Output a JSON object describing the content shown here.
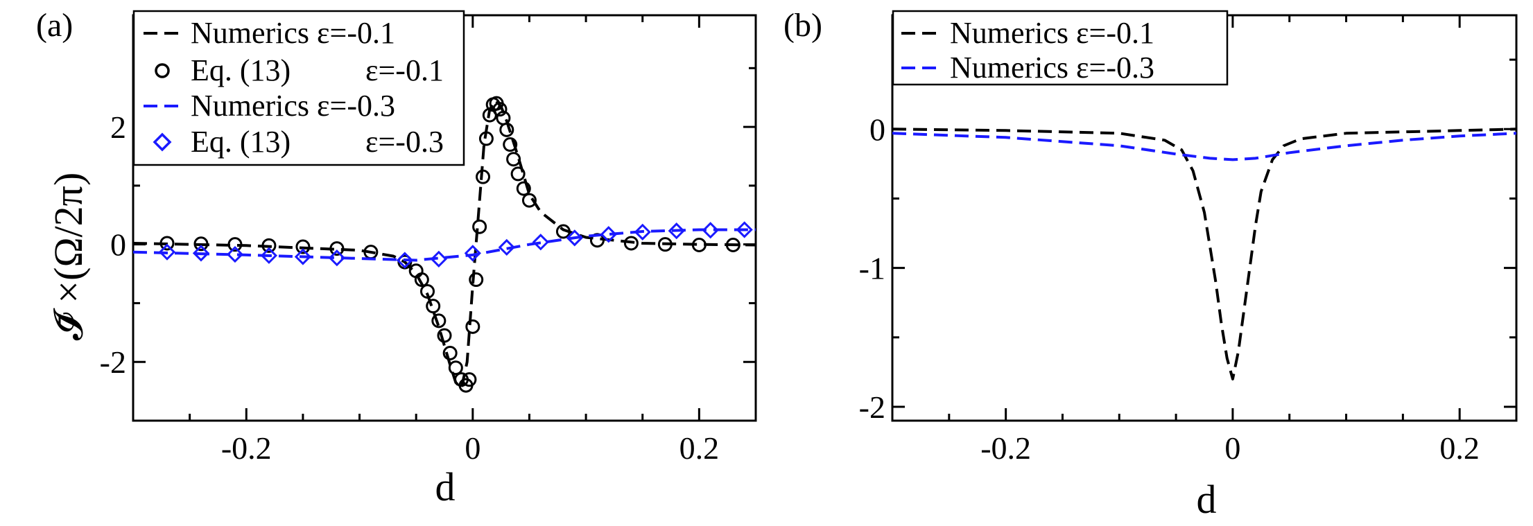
{
  "chart_data": [
    {
      "type": "line",
      "panel_label": "(a)",
      "xlabel": "d",
      "ylabel": "𝓘̄ ×(Ω/2π)",
      "xlim": [
        -0.3,
        0.25
      ],
      "ylim": [
        -3,
        3.9
      ],
      "xticks": [
        -0.2,
        0,
        0.2
      ],
      "xtick_labels": [
        "-0.2",
        "0",
        "0.2"
      ],
      "yticks": [
        -2,
        0,
        2
      ],
      "ytick_labels": [
        "-2",
        "0",
        "2"
      ],
      "legend_position": "top-left",
      "series": [
        {
          "name": "Numerics ε=-0.1",
          "legend_label": "Numerics ε=-0.1",
          "style": "dashed",
          "color": "#000000",
          "x": [
            -0.3,
            -0.2,
            -0.1,
            -0.07,
            -0.06,
            -0.05,
            -0.04,
            -0.03,
            -0.02,
            -0.015,
            -0.01,
            -0.005,
            0,
            0.005,
            0.01,
            0.015,
            0.02,
            0.025,
            0.03,
            0.04,
            0.05,
            0.06,
            0.08,
            0.1,
            0.15,
            0.2,
            0.25
          ],
          "y": [
            0.02,
            -0.02,
            -0.1,
            -0.2,
            -0.3,
            -0.5,
            -0.85,
            -1.4,
            -2.05,
            -2.35,
            -2.45,
            -2.0,
            -0.7,
            0.5,
            1.7,
            2.3,
            2.45,
            2.35,
            2.1,
            1.5,
            0.85,
            0.55,
            0.25,
            0.12,
            0.02,
            0.0,
            -0.01
          ]
        },
        {
          "name": "Eq. (13) ε=-0.1",
          "legend_label_left": "Eq. (13)",
          "legend_label_right": "ε=-0.1",
          "style": "markers-circle",
          "color": "#000000",
          "x": [
            -0.27,
            -0.24,
            -0.21,
            -0.18,
            -0.15,
            -0.12,
            -0.09,
            -0.06,
            -0.05,
            -0.045,
            -0.04,
            -0.035,
            -0.03,
            -0.025,
            -0.02,
            -0.015,
            -0.01,
            -0.006,
            -0.003,
            0,
            0.003,
            0.006,
            0.009,
            0.012,
            0.015,
            0.018,
            0.021,
            0.024,
            0.027,
            0.03,
            0.033,
            0.036,
            0.04,
            0.045,
            0.05,
            0.08,
            0.11,
            0.14,
            0.17,
            0.2,
            0.23
          ],
          "y": [
            0.02,
            0.01,
            0.0,
            -0.02,
            -0.04,
            -0.07,
            -0.13,
            -0.3,
            -0.45,
            -0.6,
            -0.8,
            -1.05,
            -1.3,
            -1.55,
            -1.85,
            -2.1,
            -2.3,
            -2.4,
            -2.3,
            -1.4,
            -0.6,
            0.3,
            1.15,
            1.8,
            2.2,
            2.38,
            2.4,
            2.3,
            2.15,
            1.95,
            1.7,
            1.45,
            1.2,
            0.95,
            0.75,
            0.22,
            0.07,
            0.02,
            0.0,
            -0.01,
            -0.01
          ]
        },
        {
          "name": "Numerics ε=-0.3",
          "legend_label": "Numerics ε=-0.3",
          "style": "dashed",
          "color": "#1a1aff",
          "x": [
            -0.3,
            -0.2,
            -0.1,
            -0.05,
            0,
            0.05,
            0.1,
            0.15,
            0.2,
            0.25
          ],
          "y": [
            -0.13,
            -0.18,
            -0.24,
            -0.27,
            -0.18,
            0.0,
            0.14,
            0.22,
            0.25,
            0.25
          ]
        },
        {
          "name": "Eq. (13) ε=-0.3",
          "legend_label_left": "Eq. (13)",
          "legend_label_right": "ε=-0.3",
          "style": "markers-diamond",
          "color": "#1a1aff",
          "x": [
            -0.27,
            -0.24,
            -0.21,
            -0.18,
            -0.15,
            -0.12,
            -0.06,
            -0.03,
            0,
            0.03,
            0.06,
            0.09,
            0.12,
            0.15,
            0.18,
            0.21,
            0.24
          ],
          "y": [
            -0.13,
            -0.15,
            -0.17,
            -0.19,
            -0.21,
            -0.23,
            -0.27,
            -0.25,
            -0.15,
            -0.05,
            0.04,
            0.11,
            0.17,
            0.21,
            0.23,
            0.24,
            0.25
          ]
        }
      ]
    },
    {
      "type": "line",
      "panel_label": "(b)",
      "xlabel": "d",
      "ylabel": "",
      "xlim": [
        -0.3,
        0.25
      ],
      "ylim": [
        -2.1,
        0.82
      ],
      "xticks": [
        -0.2,
        0,
        0.2
      ],
      "xtick_labels": [
        "-0.2",
        "0",
        "0.2"
      ],
      "yticks": [
        -2,
        -1,
        0
      ],
      "ytick_labels": [
        "-2",
        "-1",
        "0"
      ],
      "legend_position": "top-left",
      "series": [
        {
          "name": "Numerics ε=-0.1",
          "legend_label": "Numerics ε=-0.1",
          "style": "dashed",
          "color": "#000000",
          "x": [
            -0.3,
            -0.2,
            -0.1,
            -0.06,
            -0.045,
            -0.035,
            -0.025,
            -0.02,
            -0.015,
            -0.01,
            -0.005,
            0,
            0.005,
            0.01,
            0.015,
            0.02,
            0.025,
            0.035,
            0.045,
            0.06,
            0.1,
            0.2,
            0.25
          ],
          "y": [
            0.0,
            -0.01,
            -0.03,
            -0.08,
            -0.15,
            -0.3,
            -0.6,
            -0.85,
            -1.1,
            -1.4,
            -1.65,
            -1.8,
            -1.6,
            -1.3,
            -1.0,
            -0.7,
            -0.45,
            -0.22,
            -0.12,
            -0.07,
            -0.03,
            -0.01,
            0.0
          ]
        },
        {
          "name": "Numerics ε=-0.3",
          "legend_label": "Numerics ε=-0.3",
          "style": "dashed",
          "color": "#1a1aff",
          "x": [
            -0.3,
            -0.2,
            -0.1,
            -0.05,
            -0.02,
            0,
            0.02,
            0.05,
            0.1,
            0.15,
            0.2,
            0.25
          ],
          "y": [
            -0.03,
            -0.06,
            -0.12,
            -0.18,
            -0.21,
            -0.22,
            -0.21,
            -0.17,
            -0.12,
            -0.08,
            -0.05,
            -0.03
          ]
        }
      ]
    }
  ]
}
